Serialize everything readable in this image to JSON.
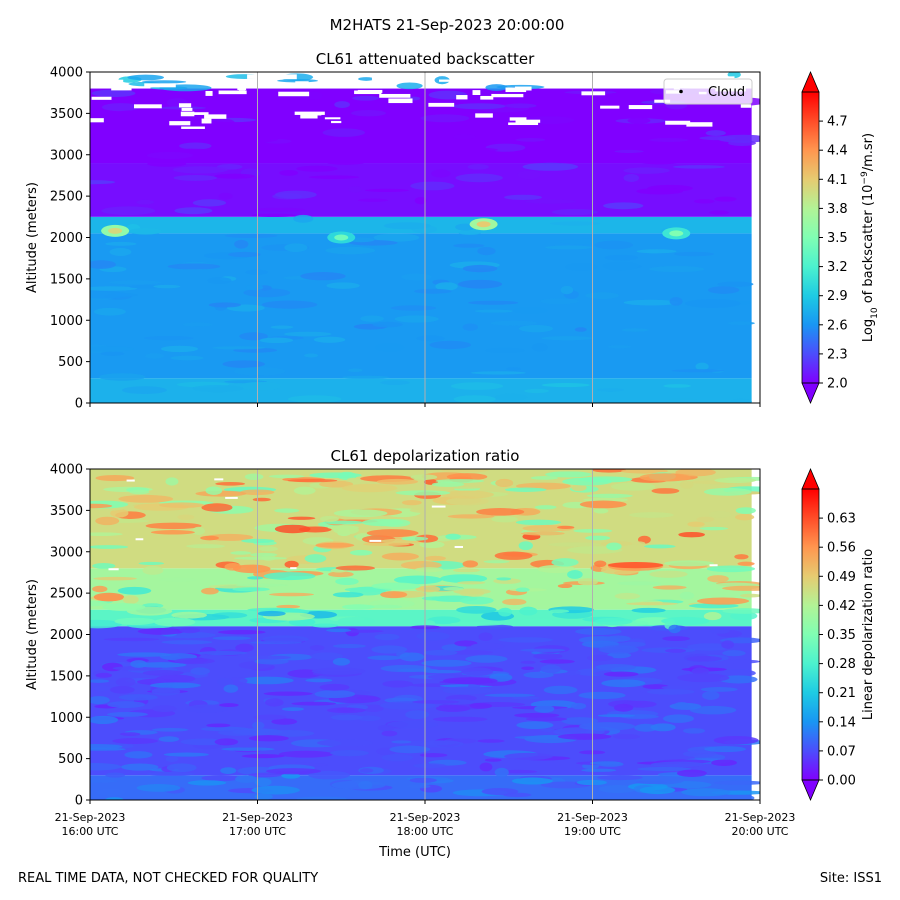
{
  "figure": {
    "suptitle": "M2HATS 21-Sep-2023 20:00:00",
    "footer_left": "REAL TIME DATA, NOT CHECKED FOR QUALITY",
    "footer_right": "Site: ISS1"
  },
  "colors": {
    "rainbow": [
      "#8000ff",
      "#4c4dfc",
      "#1996f3",
      "#1ecbe3",
      "#4cf2ce",
      "#80feb3",
      "#b2f396",
      "#e6cb71",
      "#ff964f",
      "#ff4d28",
      "#ff0000"
    ]
  },
  "chart_data": [
    {
      "type": "heatmap",
      "title": "CL61 attenuated backscatter",
      "ylabel": "Altitude (meters)",
      "xlabel": "",
      "ylim": [
        0,
        4000
      ],
      "yticks": [
        "0",
        "500",
        "1000",
        "1500",
        "2000",
        "2500",
        "3000",
        "3500",
        "4000"
      ],
      "xlim_hours_utc": [
        16,
        20
      ],
      "x_ticks_hours": [
        16,
        17,
        18,
        19,
        20
      ],
      "xtick_labels": [],
      "legend": {
        "location": "upper right",
        "entries": [
          "Cloud"
        ]
      },
      "colorbar": {
        "label_html": "Log<tspan baseline-shift='sub' font-size='9'>10</tspan> of backscatter (10<tspan baseline-shift='super' font-size='9'>−9</tspan>/m.sr)",
        "range": [
          2.0,
          5.0
        ],
        "ticks": [
          "2.0",
          "2.3",
          "2.6",
          "2.9",
          "3.2",
          "3.5",
          "3.8",
          "4.1",
          "4.4",
          "4.7"
        ],
        "extend": "both"
      },
      "layers": [
        {
          "alt_range": [
            0,
            300
          ],
          "value": 2.75
        },
        {
          "alt_range": [
            300,
            2050
          ],
          "value": 2.62
        },
        {
          "alt_range": [
            2050,
            2250
          ],
          "value": 2.78
        },
        {
          "alt_range": [
            2250,
            2900
          ],
          "value": 2.05
        },
        {
          "alt_range": [
            2900,
            3800
          ],
          "value": 2.0
        }
      ],
      "bright_spots": [
        {
          "time": 16.15,
          "alt": 2080,
          "value": 3.6
        },
        {
          "time": 17.5,
          "alt": 2000,
          "value": 3.0
        },
        {
          "time": 18.35,
          "alt": 2160,
          "value": 3.7
        },
        {
          "time": 19.5,
          "alt": 2050,
          "value": 3.1
        }
      ],
      "cloud_flag_region": {
        "alt_min": 3300,
        "alt_max": 4000,
        "value": "missing / cloud"
      }
    },
    {
      "type": "heatmap",
      "title": "CL61 depolarization ratio",
      "ylabel": "Altitude (meters)",
      "xlabel": "Time (UTC)",
      "ylim": [
        0,
        4000
      ],
      "yticks": [
        "0",
        "500",
        "1000",
        "1500",
        "2000",
        "2500",
        "3000",
        "3500",
        "4000"
      ],
      "xlim_hours_utc": [
        16,
        20
      ],
      "x_ticks_hours": [
        16,
        17,
        18,
        19,
        20
      ],
      "xtick_labels": [
        {
          "date": "21-Sep-2023",
          "time": "16:00 UTC"
        },
        {
          "date": "21-Sep-2023",
          "time": "17:00 UTC"
        },
        {
          "date": "21-Sep-2023",
          "time": "18:00 UTC"
        },
        {
          "date": "21-Sep-2023",
          "time": "19:00 UTC"
        },
        {
          "date": "21-Sep-2023",
          "time": "20:00 UTC"
        }
      ],
      "colorbar": {
        "label_html": "Linear depolarization ratio",
        "range": [
          0.0,
          0.7
        ],
        "ticks": [
          "0.00",
          "0.07",
          "0.14",
          "0.21",
          "0.28",
          "0.35",
          "0.42",
          "0.49",
          "0.56",
          "0.63"
        ],
        "extend": "both"
      },
      "layers": [
        {
          "alt_range": [
            0,
            300
          ],
          "value": 0.1
        },
        {
          "alt_range": [
            300,
            2100
          ],
          "value": 0.07
        },
        {
          "alt_range": [
            2100,
            2300
          ],
          "value": 0.3
        },
        {
          "alt_range": [
            2300,
            2800
          ],
          "value": 0.4
        },
        {
          "alt_range": [
            2800,
            4000
          ],
          "value": 0.46
        }
      ]
    }
  ]
}
